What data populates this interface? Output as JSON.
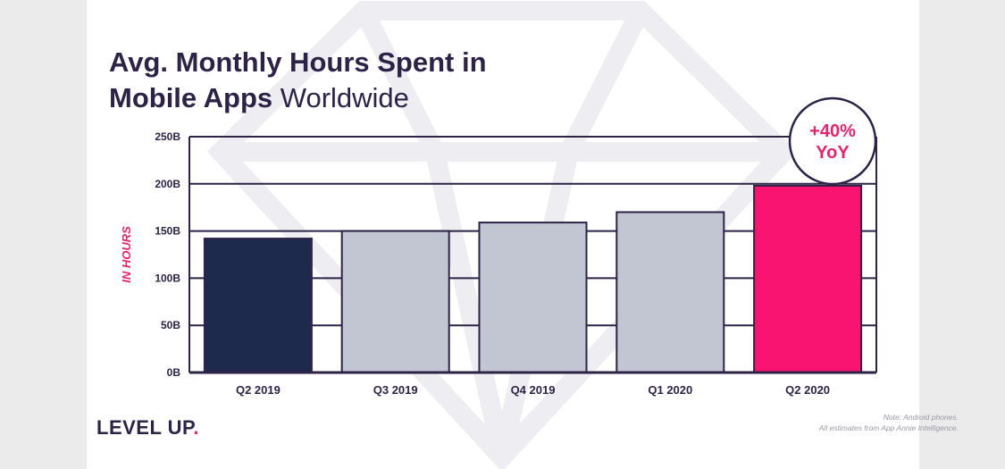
{
  "title": {
    "line1": "Avg. Monthly Hours Spent in",
    "line2_bold": "Mobile Apps",
    "line2_light": "Worldwide"
  },
  "badge": {
    "line1": "+40%",
    "line2": "YoY"
  },
  "brand": {
    "text": "LEVEL UP",
    "dot": "."
  },
  "note": {
    "line1": "Note: Android phones.",
    "line2": "All estimates from App Annie Intelligence."
  },
  "colors": {
    "text": "#2d2346",
    "accent": "#e6246e",
    "bar_highlight_start": "#1e2a4d",
    "bar_gray": "#c2c5d2",
    "bar_highlight_end": "#fa1471",
    "grid": "#2d2346"
  },
  "chart_data": {
    "type": "bar",
    "title": "Avg. Monthly Hours Spent in Mobile Apps Worldwide",
    "xlabel": "",
    "ylabel": "IN HOURS",
    "categories": [
      "Q2 2019",
      "Q3 2019",
      "Q4 2019",
      "Q1 2020",
      "Q2 2020"
    ],
    "values": [
      142,
      150,
      159,
      170,
      198
    ],
    "bar_colors": [
      "#1e2a4d",
      "#c2c5d2",
      "#c2c5d2",
      "#c2c5d2",
      "#fa1471"
    ],
    "ylim": [
      0,
      250
    ],
    "y_ticks": [
      0,
      50,
      100,
      150,
      200,
      250
    ],
    "y_tick_labels": [
      "0B",
      "50B",
      "100B",
      "150B",
      "200B",
      "250B"
    ],
    "grid": true,
    "annotations": [
      "+40% YoY"
    ]
  }
}
